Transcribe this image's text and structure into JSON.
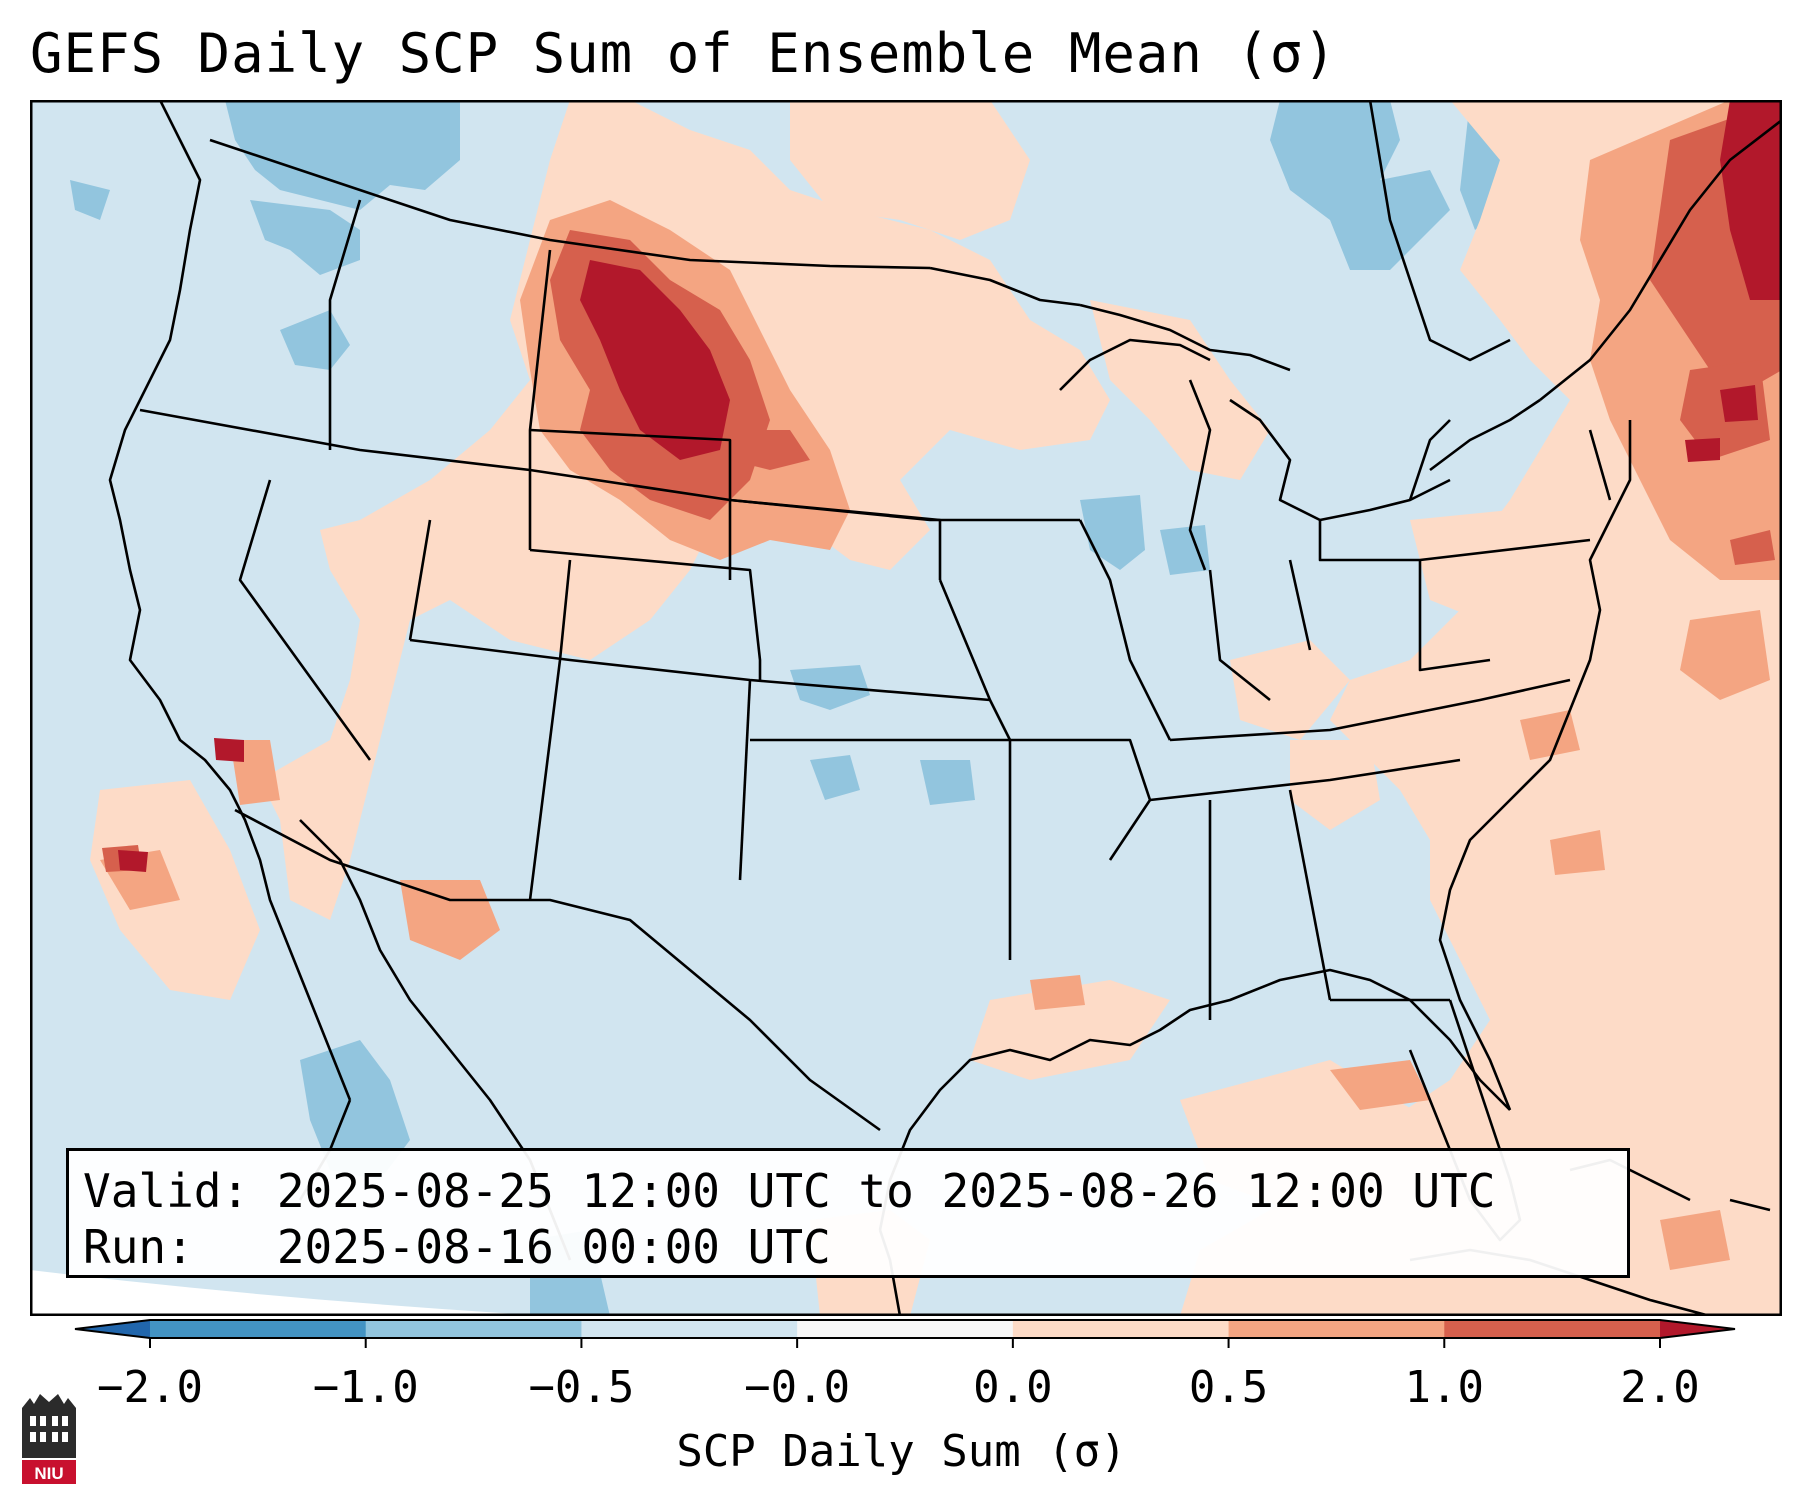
{
  "title": "GEFS Daily SCP Sum of Ensemble Mean (σ)",
  "info": {
    "valid_line": "Valid: 2025-08-25 12:00 UTC to 2025-08-26 12:00 UTC",
    "run_line": "Run:   2025-08-16 00:00 UTC"
  },
  "colorbar": {
    "title": "SCP Daily Sum (σ)",
    "tick_labels": [
      "−2.0",
      "−1.0",
      "−0.5",
      "−0.0",
      "0.0",
      "0.5",
      "1.0",
      "2.0"
    ],
    "bins": [
      {
        "range": "< -2.0",
        "color": "#2166ac"
      },
      {
        "range": "-2.0 to -1.0",
        "color": "#4393c3"
      },
      {
        "range": "-1.0 to -0.5",
        "color": "#92c5de"
      },
      {
        "range": "-0.5 to -0.0",
        "color": "#d1e5f0"
      },
      {
        "range": "-0.0 to 0.0",
        "color": "#f7f7f7"
      },
      {
        "range": "0.0 to 0.5",
        "color": "#fddbc7"
      },
      {
        "range": "0.5 to 1.0",
        "color": "#f4a582"
      },
      {
        "range": "1.0 to 2.0",
        "color": "#d6604d"
      },
      {
        "range": "> 2.0",
        "color": "#b2182b"
      }
    ]
  },
  "map": {
    "region": "Contiguous United States",
    "background_color": "#d1e5f0",
    "features": [
      {
        "name": "Northern Plains maximum",
        "value_range": "1.0 to 2.0+",
        "color": "#b2182b"
      },
      {
        "name": "Northeast / New England maximum",
        "value_range": "1.0 to 2.0+",
        "color": "#b2182b"
      },
      {
        "name": "Southern California spot",
        "value_range": "> 2.0",
        "color": "#b2182b"
      },
      {
        "name": "Offshore Baja California spot",
        "value_range": "1.0 to 2.0",
        "color": "#d6604d"
      },
      {
        "name": "Southwest / Four Corners",
        "value_range": "0.0 to 1.0",
        "color": "#fddbc7"
      },
      {
        "name": "Southeast US / Atlantic",
        "value_range": "0.0 to 1.0",
        "color": "#fddbc7"
      },
      {
        "name": "Northwest US",
        "value_range": "-1.0 to -0.5",
        "color": "#92c5de"
      }
    ]
  },
  "logo": {
    "text": "NIU",
    "colors": {
      "dark": "#2b2b2b",
      "red": "#c8102e"
    }
  }
}
